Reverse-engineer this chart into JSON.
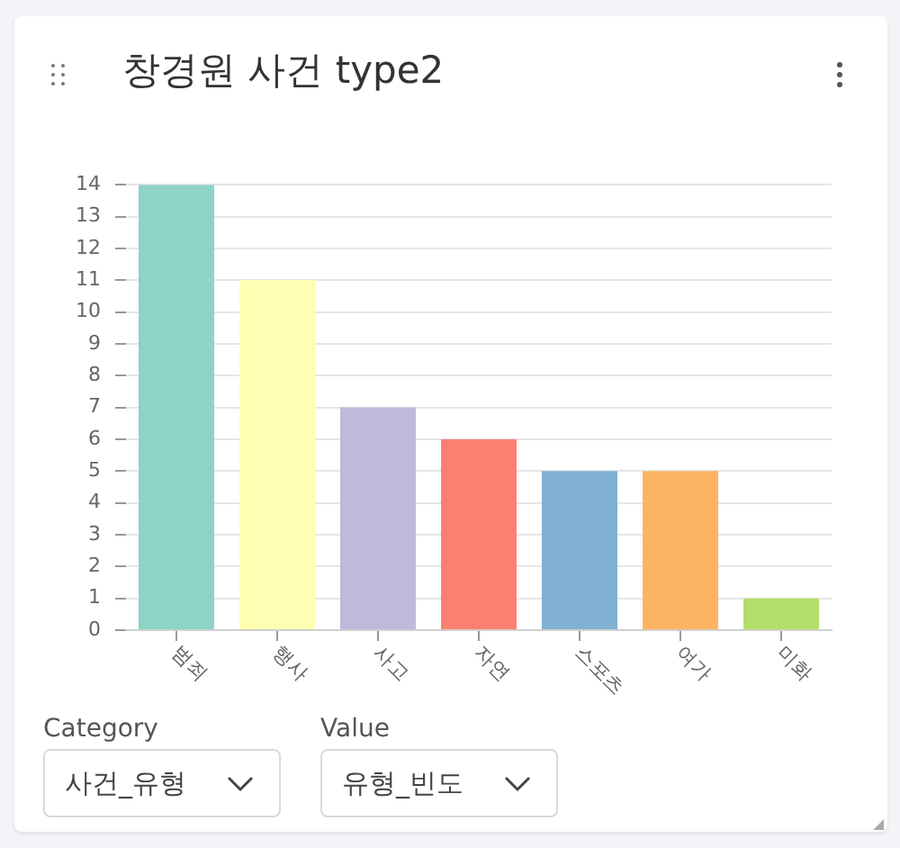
{
  "chart_data": {
    "type": "bar",
    "title": "창경원 사건 type2",
    "categories": [
      "범죄",
      "행사",
      "사고",
      "자연",
      "스포츠",
      "여가",
      "미화"
    ],
    "values": [
      14,
      11,
      7,
      6,
      5,
      5,
      1
    ],
    "colors": [
      "#8dd3c7",
      "#ffffb3",
      "#bebada",
      "#fb8072",
      "#80b1d3",
      "#fdb462",
      "#b3de69"
    ],
    "ylim": [
      0,
      14
    ],
    "yticks": [
      0,
      1,
      2,
      3,
      4,
      5,
      6,
      7,
      8,
      9,
      10,
      11,
      12,
      13,
      14
    ],
    "grid": "y",
    "annotations": [
      "Category",
      "사건_유형",
      "Value",
      "유형_빈도"
    ]
  }
}
